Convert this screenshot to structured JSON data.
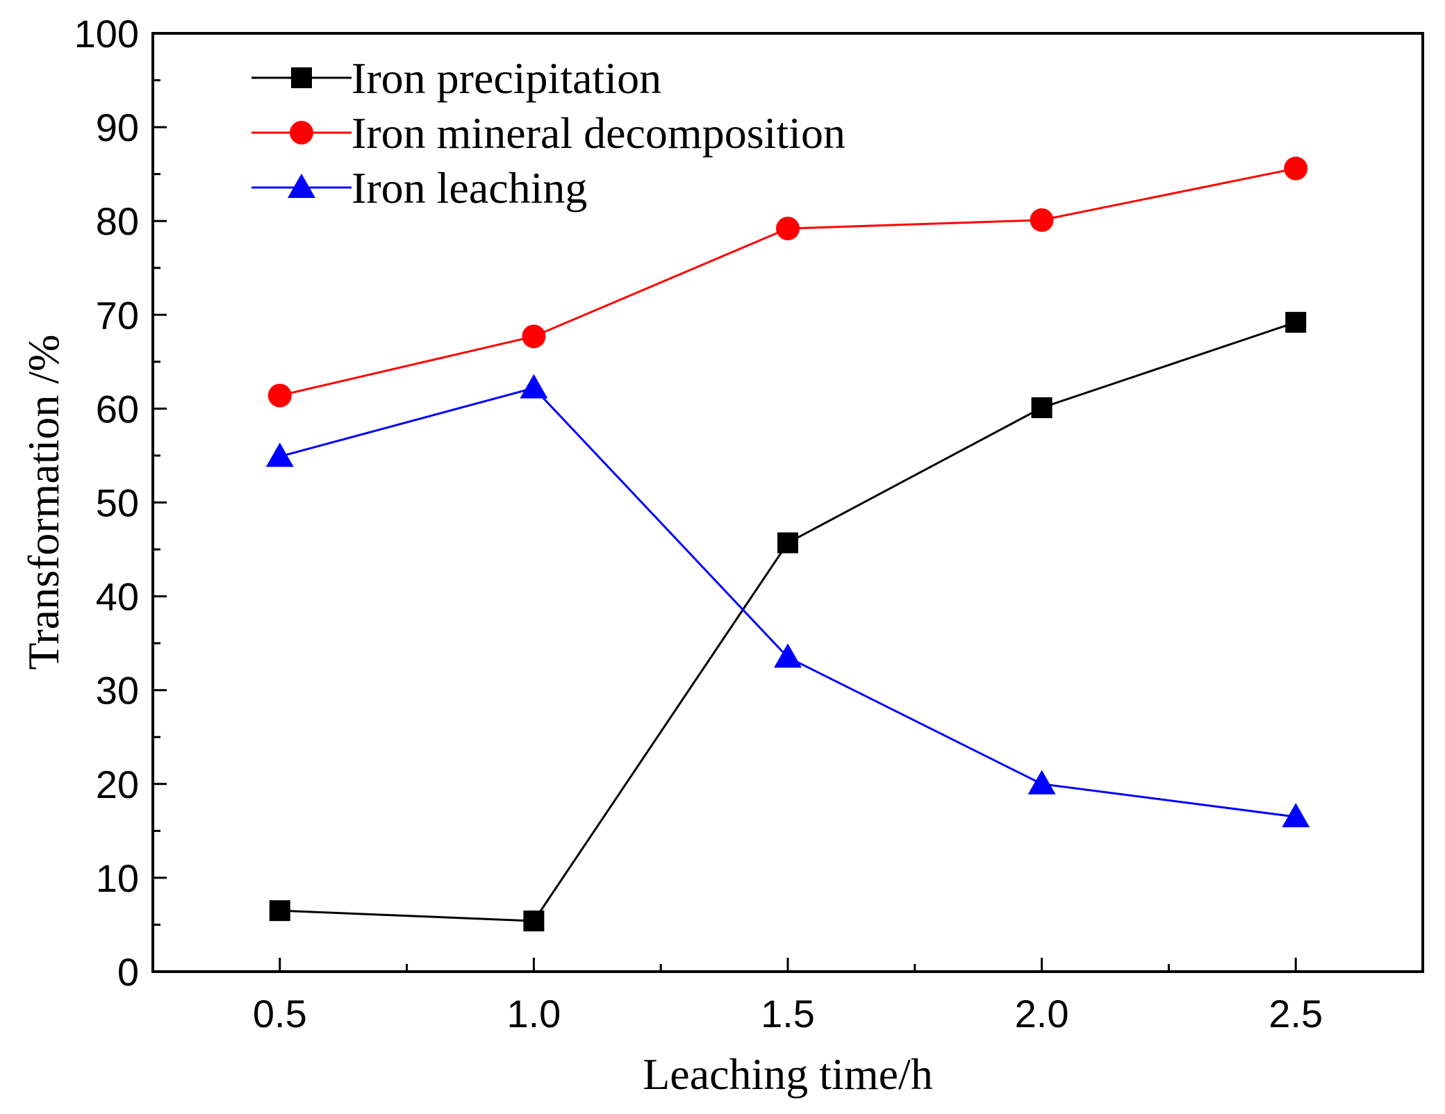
{
  "chart_data": {
    "type": "line",
    "title": "",
    "xlabel": "Leaching time/h",
    "ylabel": "Transformation /%",
    "xlim": [
      0.25,
      2.75
    ],
    "ylim": [
      0,
      100
    ],
    "x_major_ticks": [
      0.5,
      1.0,
      1.5,
      2.0,
      2.5
    ],
    "x_tick_labels": [
      "0.5",
      "1.0",
      "1.5",
      "2.0",
      "2.5"
    ],
    "x_minor_ticks": [
      0.75,
      1.25,
      1.75,
      2.25
    ],
    "y_major_ticks": [
      0,
      10,
      20,
      30,
      40,
      50,
      60,
      70,
      80,
      90,
      100
    ],
    "y_tick_labels": [
      "0",
      "10",
      "20",
      "30",
      "40",
      "50",
      "60",
      "70",
      "80",
      "90",
      "100"
    ],
    "y_minor_ticks": [
      5,
      15,
      25,
      35,
      45,
      55,
      65,
      75,
      85,
      95
    ],
    "grid": false,
    "legend_position": "top-left",
    "x": [
      0.5,
      1.0,
      1.5,
      2.0,
      2.5
    ],
    "series": [
      {
        "name": "Iron precipitation",
        "color": "#000000",
        "marker": "square",
        "values": [
          6.5,
          5.4,
          45.7,
          60.1,
          69.2
        ]
      },
      {
        "name": "Iron mineral decomposition",
        "color": "#ff0000",
        "marker": "circle",
        "values": [
          61.4,
          67.7,
          79.2,
          80.1,
          85.6
        ]
      },
      {
        "name": "Iron leaching",
        "color": "#0000ff",
        "marker": "triangle",
        "values": [
          54.9,
          62.2,
          33.5,
          20.0,
          16.5
        ]
      }
    ]
  }
}
